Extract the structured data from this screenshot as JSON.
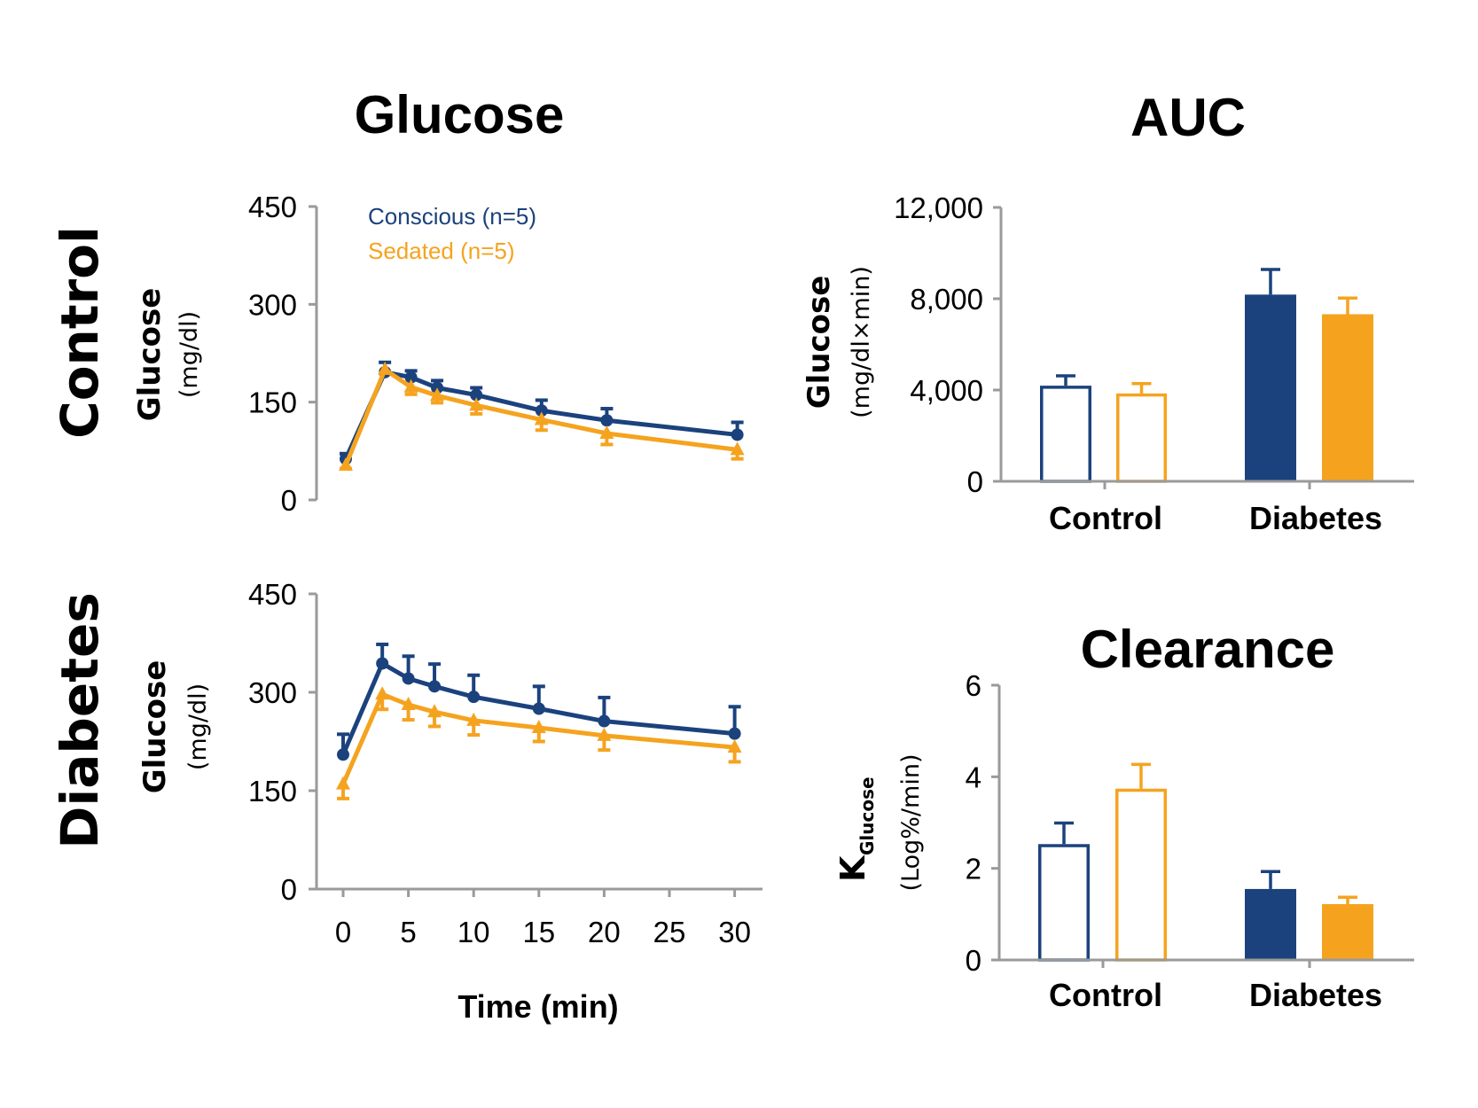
{
  "titles": {
    "glucose": "Glucose",
    "auc": "AUC",
    "clearance": "Clearance"
  },
  "row_labels": {
    "control": "Control",
    "diabetes": "Diabetes"
  },
  "colors": {
    "conscious": "#1b427d",
    "sedated": "#f5a31f",
    "axis": "#9a9a9a"
  },
  "legend": {
    "conscious": "Conscious (n=5)",
    "sedated": "Sedated (n=5)"
  },
  "axis_labels": {
    "glucose_main": "Glucose",
    "glucose_unit": "(mg/dl)",
    "auc_main": "Glucose",
    "auc_unit": "(mg/dl×min)",
    "k_main": "K",
    "k_sub": "Glucose",
    "k_unit": "(Log%/min)",
    "time": "Time (min)"
  },
  "chart_data": [
    {
      "id": "control-glucose",
      "type": "line",
      "title": "Glucose",
      "row": "Control",
      "xlabel": "Time (min)",
      "ylabel": "Glucose (mg/dl)",
      "xlim": [
        0,
        30
      ],
      "ylim": [
        0,
        450
      ],
      "yticks": [
        0,
        150,
        300,
        450
      ],
      "yticklabels": [
        "0",
        "150",
        "300",
        "450"
      ],
      "x": [
        0,
        3,
        5,
        7,
        10,
        15,
        20,
        30
      ],
      "series": [
        {
          "name": "Conscious (n=5)",
          "marker": "circle",
          "error_dir": "up",
          "values": [
            63,
            196,
            188,
            172,
            161,
            137,
            122,
            100
          ],
          "errors": [
            8,
            15,
            10,
            11,
            11,
            16,
            18,
            19
          ]
        },
        {
          "name": "Sedated (n=5)",
          "marker": "triangle",
          "error_dir": "down",
          "values": [
            53,
            200,
            173,
            160,
            145,
            123,
            102,
            77
          ],
          "errors": [
            5,
            5,
            11,
            11,
            13,
            16,
            17,
            14
          ]
        }
      ],
      "legend": "top-left",
      "grid": false
    },
    {
      "id": "diabetes-glucose",
      "type": "line",
      "title": "Glucose",
      "row": "Diabetes",
      "xlabel": "Time (min)",
      "ylabel": "Glucose (mg/dl)",
      "xlim": [
        0,
        30
      ],
      "ylim": [
        0,
        450
      ],
      "xticks": [
        0,
        5,
        10,
        15,
        20,
        25,
        30
      ],
      "xticklabels": [
        "0",
        "5",
        "10",
        "15",
        "20",
        "25",
        "30"
      ],
      "yticks": [
        0,
        150,
        300,
        450
      ],
      "yticklabels": [
        "0",
        "150",
        "300",
        "450"
      ],
      "x": [
        0,
        3,
        5,
        7,
        10,
        15,
        20,
        30
      ],
      "series": [
        {
          "name": "Conscious (n=5)",
          "marker": "circle",
          "error_dir": "up",
          "values": [
            205,
            344,
            321,
            309,
            293,
            275,
            256,
            237
          ],
          "errors": [
            31,
            29,
            34,
            34,
            33,
            34,
            36,
            41
          ]
        },
        {
          "name": "Sedated (n=5)",
          "marker": "triangle",
          "error_dir": "down",
          "values": [
            160,
            297,
            281,
            270,
            257,
            246,
            234,
            216
          ],
          "errors": [
            22,
            23,
            23,
            22,
            22,
            21,
            22,
            22
          ]
        }
      ],
      "grid": false
    },
    {
      "id": "auc",
      "type": "bar",
      "title": "AUC",
      "ylabel": "Glucose (mg/dl×min)",
      "categories": [
        "Control",
        "Diabetes"
      ],
      "ylim": [
        0,
        12000
      ],
      "yticks": [
        0,
        4000,
        8000,
        12000
      ],
      "yticklabels": [
        "0",
        "4,000",
        "8,000",
        "12,000"
      ],
      "series": [
        {
          "name": "Conscious",
          "values": [
            4190,
            8180
          ],
          "errors": [
            430,
            1100
          ]
        },
        {
          "name": "Sedated",
          "values": [
            3850,
            7320
          ],
          "errors": [
            430,
            710
          ]
        }
      ],
      "fill": {
        "Control": "open",
        "Diabetes": "filled"
      },
      "grid": false
    },
    {
      "id": "clearance",
      "type": "bar",
      "title": "Clearance",
      "ylabel": "K_Glucose (Log%/min)",
      "categories": [
        "Control",
        "Diabetes"
      ],
      "ylim": [
        0,
        6
      ],
      "yticks": [
        0,
        2,
        4,
        6
      ],
      "yticklabels": [
        "0",
        "2",
        "4",
        "6"
      ],
      "series": [
        {
          "name": "Conscious",
          "values": [
            2.53,
            1.55
          ],
          "errors": [
            0.46,
            0.38
          ]
        },
        {
          "name": "Sedated",
          "values": [
            3.74,
            1.22
          ],
          "errors": [
            0.53,
            0.15
          ]
        }
      ],
      "fill": {
        "Control": "open",
        "Diabetes": "filled"
      },
      "grid": false
    }
  ]
}
